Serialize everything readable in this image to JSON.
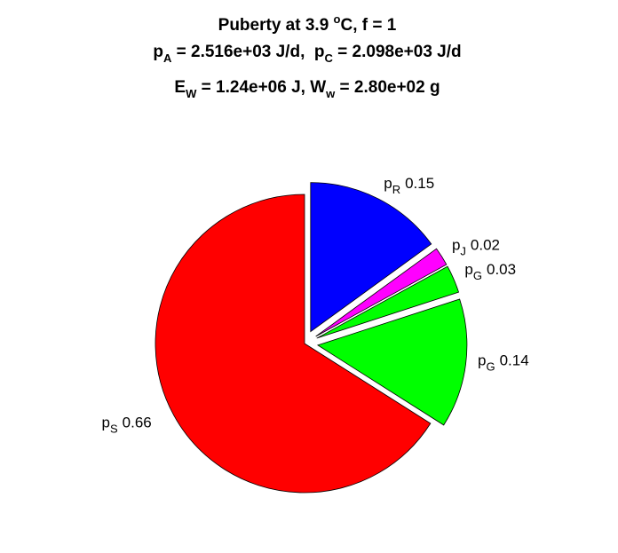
{
  "chart_data": {
    "type": "pie",
    "title": [
      [
        "Puberty at 3.9 ",
        "o",
        "C, f = 1"
      ],
      [
        "p",
        "A",
        " = 2.516e+03 J/d,  p",
        "C",
        " = 2.098e+03 J/d"
      ],
      [
        "E",
        "W",
        " = 1.24e+06 J, W",
        "w",
        " = 2.80e+02 g"
      ]
    ],
    "categories": [
      {
        "base": "p",
        "sub": "R"
      },
      {
        "base": "p",
        "sub": "J"
      },
      {
        "base": "p",
        "sub": "G"
      },
      {
        "base": "p",
        "sub": "G"
      },
      {
        "base": "p",
        "sub": "S"
      }
    ],
    "values": [
      0.15,
      0.02,
      0.03,
      0.14,
      0.66
    ],
    "colors": [
      "#0000ff",
      "#ff00ff",
      "#00ff00",
      "#00ff00",
      "#ff0000"
    ],
    "explode": [
      1,
      1,
      1,
      1,
      0
    ]
  }
}
